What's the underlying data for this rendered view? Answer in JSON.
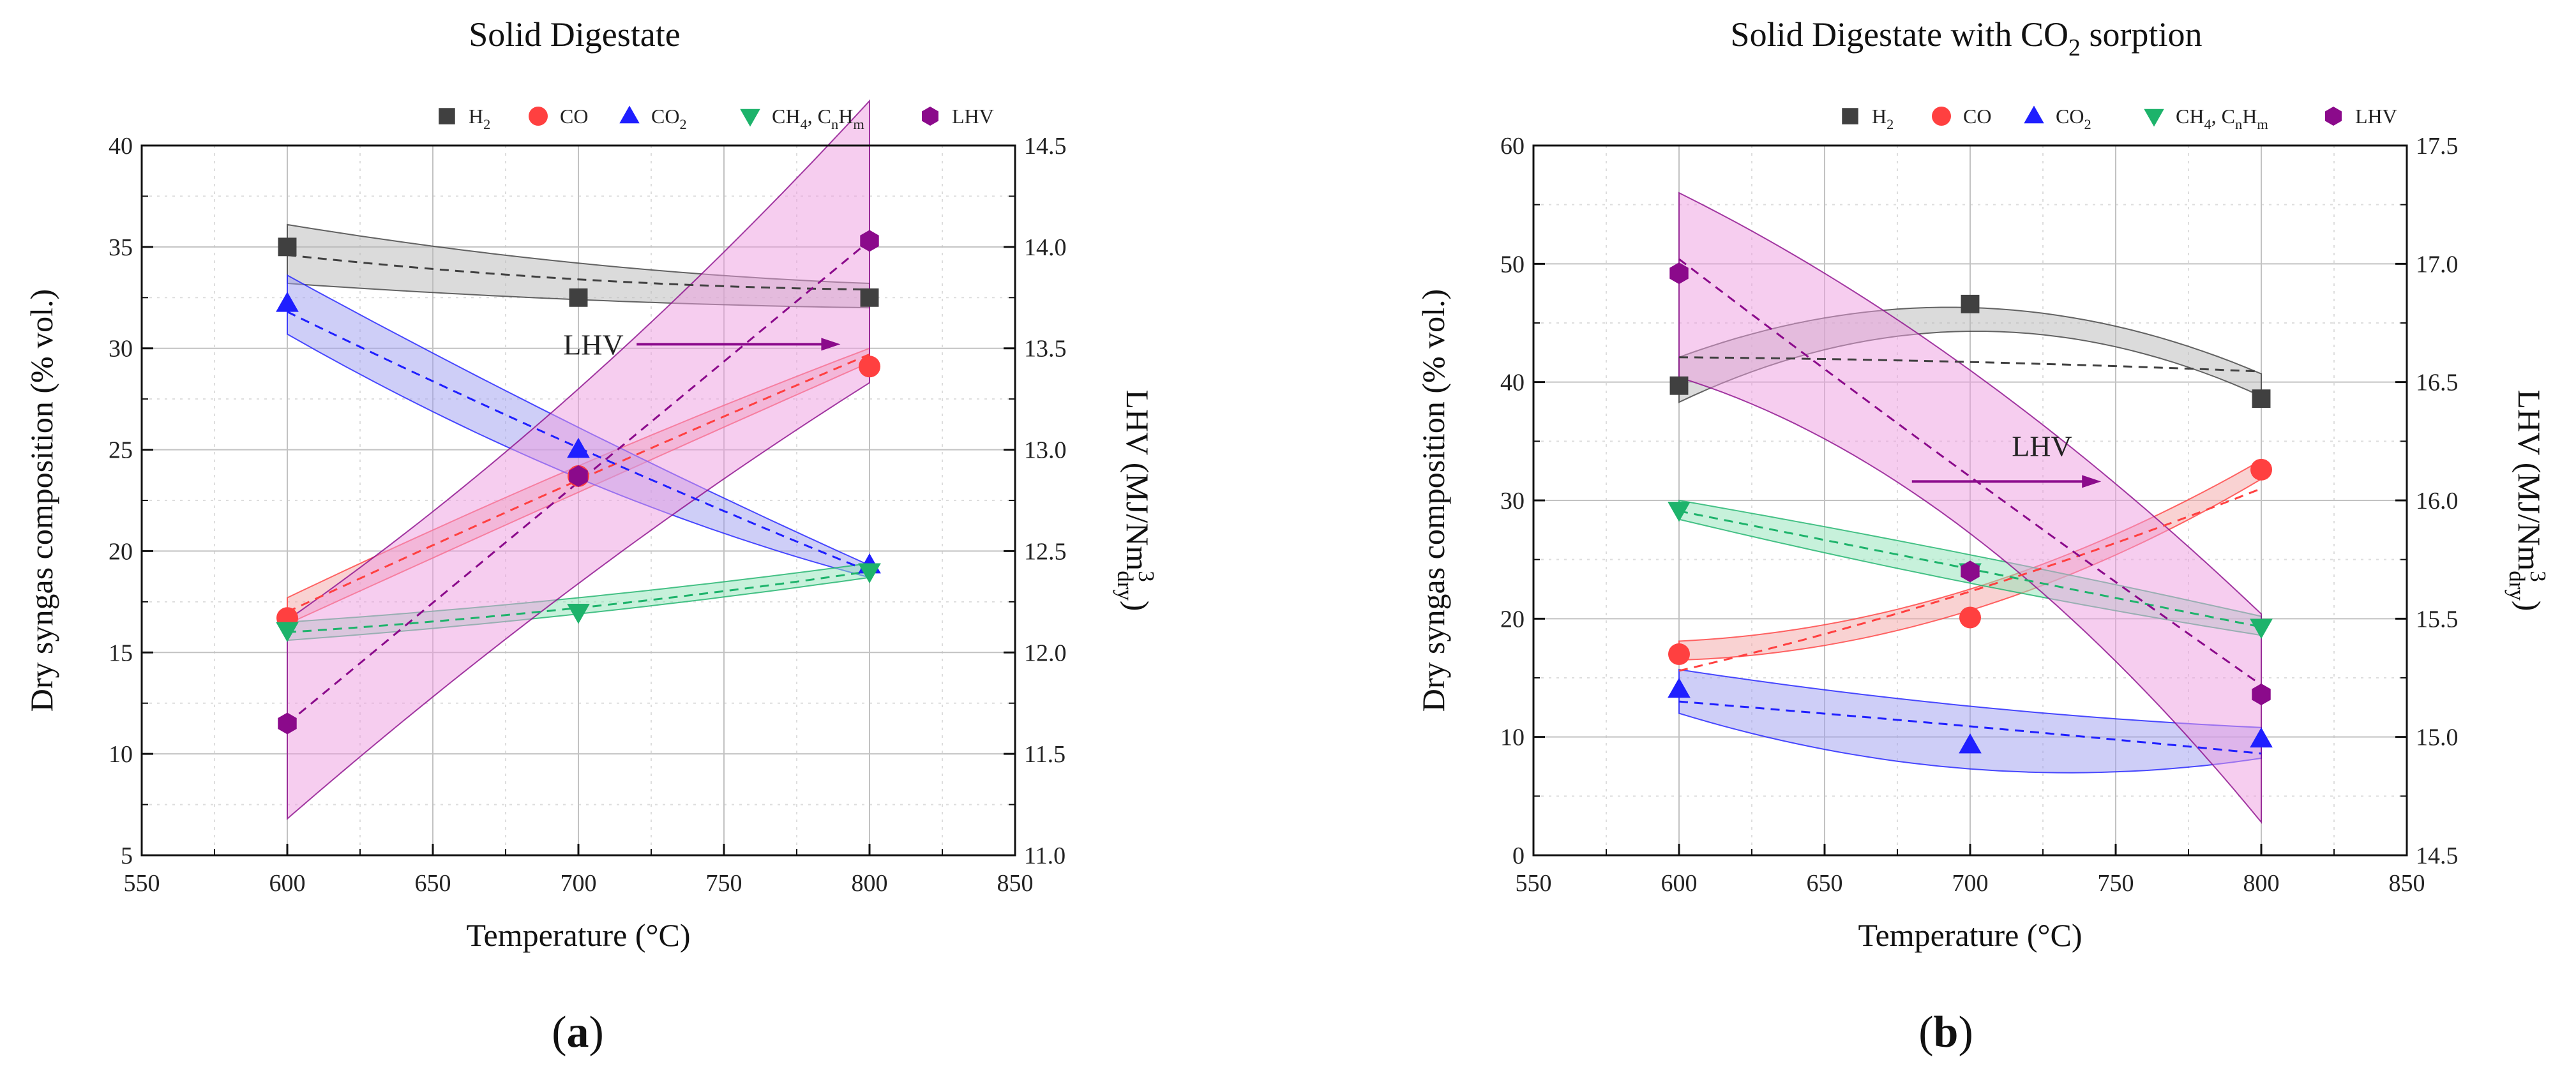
{
  "chart_data": [
    {
      "type": "scatter",
      "title": "Solid Digestate",
      "panel_label": "(a)",
      "xlabel": "Temperature (°C)",
      "ylabel": "Dry syngas composition (% vol.)",
      "y2label": "LHV (MJ/Nm3dry)",
      "xlim": [
        550,
        850
      ],
      "ylim": [
        5,
        40
      ],
      "y2lim": [
        11.0,
        14.5
      ],
      "xticks": [
        550,
        600,
        650,
        700,
        750,
        800,
        850
      ],
      "yticks": [
        5,
        10,
        15,
        20,
        25,
        30,
        35,
        40
      ],
      "y2ticks": [
        11.0,
        11.5,
        12.0,
        12.5,
        13.0,
        13.5,
        14.0,
        14.5
      ],
      "grid": true,
      "legend_position": "top",
      "x": [
        600,
        700,
        800
      ],
      "series": [
        {
          "name": "H2",
          "marker": "square",
          "color": "#404040",
          "band_color": "#b8b8b8",
          "axis": "left",
          "values": [
            35.0,
            32.5,
            32.5
          ],
          "fit": [
            34.6,
            33.4,
            32.9
          ],
          "band_low": [
            33.2,
            32.4,
            32.0
          ],
          "band_high": [
            36.1,
            34.2,
            33.2
          ]
        },
        {
          "name": "CO",
          "marker": "circle",
          "color": "#ff4040",
          "band_color": "#f4a6a6",
          "axis": "left",
          "values": [
            16.7,
            23.7,
            29.1
          ],
          "fit": [
            17.0,
            23.5,
            29.7
          ],
          "band_low": [
            16.4,
            22.9,
            29.3
          ],
          "band_high": [
            17.7,
            24.2,
            30.0
          ]
        },
        {
          "name": "CO2",
          "marker": "triangle-up",
          "color": "#1f1fff",
          "band_color": "#9e9ef0",
          "axis": "left",
          "values": [
            32.2,
            25.0,
            19.3
          ],
          "fit": [
            31.8,
            25.1,
            19.0
          ],
          "band_low": [
            30.7,
            23.6,
            18.7
          ],
          "band_high": [
            33.6,
            26.1,
            19.3
          ]
        },
        {
          "name": "CH4, CnHm",
          "marker": "triangle-down",
          "color": "#1db36b",
          "band_color": "#8fe3b8",
          "axis": "left",
          "values": [
            16.1,
            17.0,
            19.0
          ],
          "fit": [
            16.0,
            17.2,
            19.0
          ],
          "band_low": [
            15.6,
            16.9,
            18.7
          ],
          "band_high": [
            16.5,
            17.7,
            19.4
          ]
        },
        {
          "name": "LHV",
          "marker": "hexagon",
          "color": "#8b0a8b",
          "band_color": "#ee9ce0",
          "axis": "right",
          "values": [
            11.65,
            12.87,
            14.03
          ],
          "fit": [
            11.65,
            12.84,
            14.03
          ],
          "band_low": [
            11.18,
            12.34,
            13.33
          ],
          "band_high": [
            12.16,
            13.3,
            14.72
          ]
        }
      ],
      "annotation": {
        "text": "LHV",
        "x_from": 720,
        "x_to": 790,
        "y": 13.52
      }
    },
    {
      "type": "scatter",
      "title": "Solid Digestate with CO2 sorption",
      "panel_label": "(b)",
      "xlabel": "Temperature (°C)",
      "ylabel": "Dry syngas composition (% vol.)",
      "y2label": "LHV (MJ/Nm3dry)",
      "xlim": [
        550,
        850
      ],
      "ylim": [
        0,
        60
      ],
      "y2lim": [
        14.5,
        17.5
      ],
      "xticks": [
        550,
        600,
        650,
        700,
        750,
        800,
        850
      ],
      "yticks": [
        0,
        10,
        20,
        30,
        40,
        50,
        60
      ],
      "y2ticks": [
        14.5,
        15.0,
        15.5,
        16.0,
        16.5,
        17.0,
        17.5
      ],
      "grid": true,
      "legend_position": "top",
      "x": [
        600,
        700,
        800
      ],
      "series": [
        {
          "name": "H2",
          "marker": "square",
          "color": "#404040",
          "band_color": "#b8b8b8",
          "axis": "left",
          "values": [
            39.7,
            46.6,
            38.6
          ],
          "fit": [
            42.1,
            41.7,
            40.9
          ],
          "band_low": [
            38.3,
            44.3,
            38.8
          ],
          "band_high": [
            42.1,
            46.3,
            40.7
          ]
        },
        {
          "name": "CO",
          "marker": "circle",
          "color": "#ff4040",
          "band_color": "#f4a6a6",
          "axis": "left",
          "values": [
            17.0,
            20.1,
            32.6
          ],
          "fit": [
            15.6,
            22.3,
            31.0
          ],
          "band_low": [
            16.5,
            20.7,
            31.8
          ],
          "band_high": [
            18.1,
            22.5,
            33.4
          ]
        },
        {
          "name": "CO2",
          "marker": "triangle-up",
          "color": "#1f1fff",
          "band_color": "#9e9ef0",
          "axis": "left",
          "values": [
            14.0,
            9.3,
            9.8
          ],
          "fit": [
            13.0,
            10.9,
            8.6
          ],
          "band_low": [
            12.0,
            7.3,
            8.2
          ],
          "band_high": [
            15.7,
            12.6,
            10.8
          ]
        },
        {
          "name": "CH4, CnHm",
          "marker": "triangle-down",
          "color": "#1db36b",
          "band_color": "#8fe3b8",
          "axis": "left",
          "values": [
            29.2,
            24.0,
            19.3
          ],
          "fit": [
            29.1,
            24.2,
            19.3
          ],
          "band_low": [
            28.4,
            23.0,
            18.6
          ],
          "band_high": [
            30.0,
            25.4,
            20.2
          ]
        },
        {
          "name": "LHV",
          "marker": "hexagon",
          "color": "#8b0a8b",
          "band_color": "#ee9ce0",
          "axis": "right",
          "values": [
            16.96,
            15.7,
            15.18
          ],
          "fit": [
            17.02,
            16.1,
            15.22
          ],
          "band_low": [
            16.52,
            15.86,
            14.64
          ],
          "band_high": [
            17.3,
            16.55,
            15.52
          ]
        }
      ],
      "annotation": {
        "text": "LHV",
        "x_from": 680,
        "x_to": 745,
        "y": 16.08
      }
    }
  ]
}
